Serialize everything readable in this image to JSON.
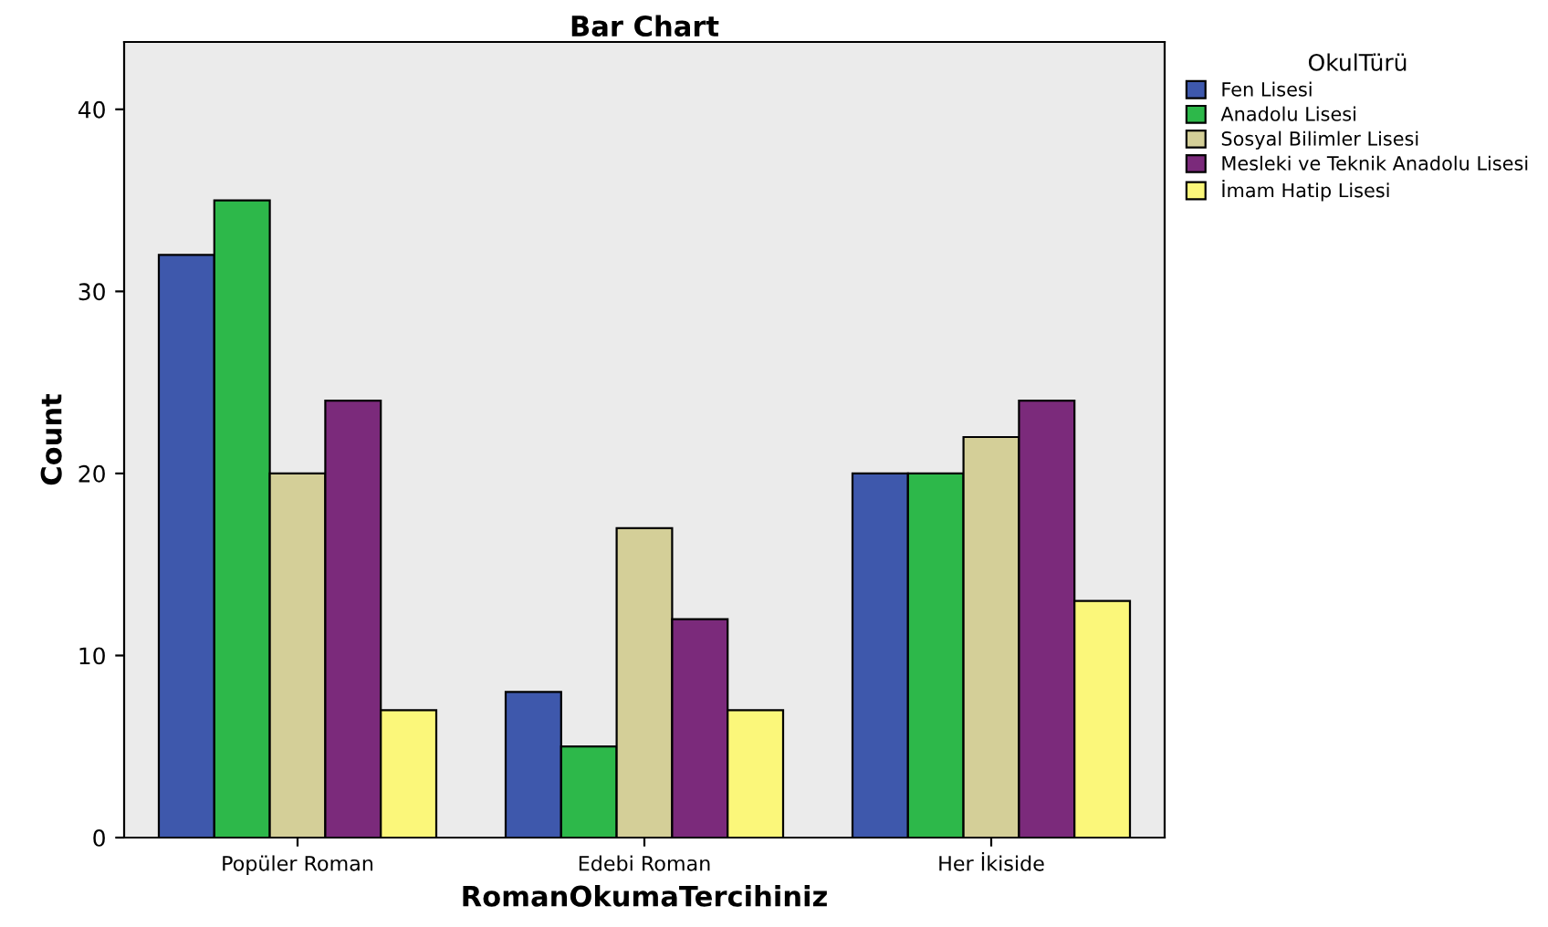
{
  "chart_data": {
    "type": "bar",
    "title": "Bar Chart",
    "xlabel": "RomanOkumaTercihiniz",
    "ylabel": "Count",
    "legend_title": "OkulTürü",
    "categories": [
      "Popüler Roman",
      "Edebi Roman",
      "Her İkiside"
    ],
    "series": [
      {
        "name": "Fen Lisesi",
        "color": "#3e58ac",
        "values": [
          32,
          8,
          20
        ]
      },
      {
        "name": "Anadolu Lisesi",
        "color": "#2db84a",
        "values": [
          35,
          5,
          20
        ]
      },
      {
        "name": "Sosyal Bilimler Lisesi",
        "color": "#d4cf98",
        "values": [
          20,
          17,
          22
        ]
      },
      {
        "name": "Mesleki ve Teknik Anadolu Lisesi",
        "color": "#7b2a7b",
        "values": [
          24,
          12,
          24
        ]
      },
      {
        "name": "İmam Hatip Lisesi",
        "color": "#fbf77a",
        "values": [
          7,
          7,
          13
        ]
      }
    ],
    "ylim": [
      0,
      43.7
    ],
    "yticks": [
      0,
      10,
      20,
      30,
      40
    ],
    "grid": false,
    "legend": "right"
  }
}
